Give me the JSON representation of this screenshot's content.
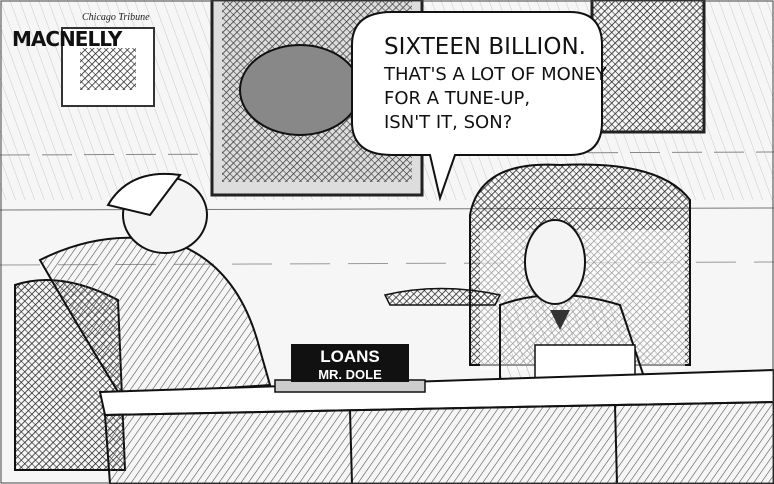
{
  "signature": {
    "artist": "MACNELLY",
    "paper": "Chicago Tribune"
  },
  "speech_bubble": {
    "lines": [
      "SIXTEEN BILLION.",
      "THAT'S A LOT OF MONEY",
      "FOR A TUNE-UP,",
      "ISN'T IT, SON?"
    ]
  },
  "nameplate": {
    "lines": [
      "LOANS",
      "MR. DOLE"
    ]
  }
}
